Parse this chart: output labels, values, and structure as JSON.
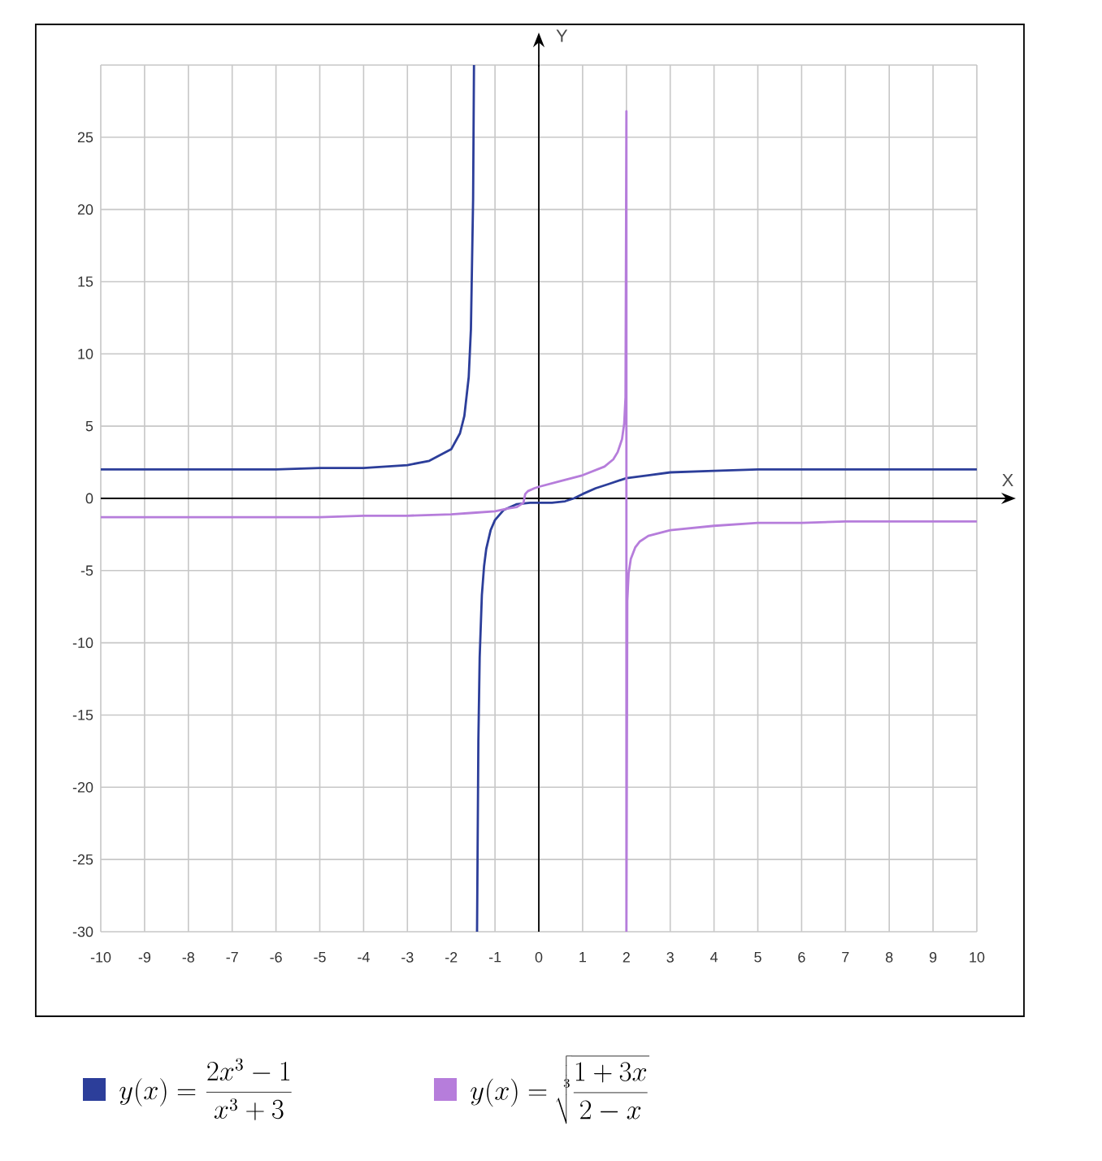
{
  "chart_data": {
    "type": "line",
    "xlabel": "X",
    "ylabel": "Y",
    "xlim": [
      -10,
      10
    ],
    "ylim": [
      -30,
      30
    ],
    "xticks": [
      -10,
      -9,
      -8,
      -7,
      -6,
      -5,
      -4,
      -3,
      -2,
      -1,
      0,
      1,
      2,
      3,
      4,
      5,
      6,
      7,
      8,
      9,
      10
    ],
    "yticks": [
      -30,
      -25,
      -20,
      -15,
      -10,
      -5,
      0,
      5,
      10,
      15,
      20,
      25,
      {
        "value": 30,
        "label": null
      }
    ],
    "grid": true,
    "legend": "bottom",
    "marker": "none",
    "line_style": "solid",
    "series": [
      {
        "name": "y(x)=\\frac{2x^3-1}{x^3+3}",
        "color": "#2c3e9a",
        "x": [
          -10,
          -8,
          -6,
          -5,
          -4,
          -3,
          -2.5,
          -2,
          -1.8,
          -1.7,
          -1.6,
          -1.55,
          -1.5,
          -1.48,
          -1.44,
          -1.41,
          -1.38,
          -1.35,
          -1.3,
          -1.25,
          -1.2,
          -1.1,
          -1,
          -0.8,
          -0.5,
          -0.2,
          0,
          0.3,
          0.6,
          0.8,
          1,
          1.3,
          1.6,
          2,
          2.5,
          3,
          4,
          5,
          7,
          10
        ],
        "values": [
          2,
          2,
          2,
          2.1,
          2.1,
          2.3,
          2.6,
          3.4,
          4.5,
          5.7,
          8.4,
          11.7,
          20.7,
          30,
          null,
          -30,
          -16.8,
          -11,
          -6.7,
          -4.7,
          -3.5,
          -2.2,
          -1.5,
          -0.8,
          -0.4,
          -0.3,
          -0.3,
          -0.3,
          -0.2,
          0,
          0.3,
          0.7,
          1,
          1.4,
          1.6,
          1.8,
          1.9,
          2,
          2,
          2
        ]
      },
      {
        "name": "y(x)=\\sqrt[3]{\\frac{1+3x}{2-x}}",
        "color": "#b67ddb",
        "x": [
          -10,
          -8,
          -6,
          -5,
          -4,
          -3,
          -2,
          -1.5,
          -1,
          -0.7,
          -0.5,
          -0.4,
          -0.35,
          -0.33,
          -0.31,
          -0.25,
          -0.1,
          0,
          0.5,
          1,
          1.5,
          1.7,
          1.8,
          1.9,
          1.95,
          1.98,
          2,
          2,
          2.02,
          2.05,
          2.1,
          2.2,
          2.3,
          2.5,
          3,
          4,
          5,
          6,
          7,
          8,
          10
        ],
        "values": [
          -1.3,
          -1.3,
          -1.3,
          -1.3,
          -1.2,
          -1.2,
          -1.1,
          -1,
          -0.9,
          -0.7,
          -0.6,
          -0.4,
          -0.3,
          0,
          0.3,
          0.5,
          0.7,
          0.8,
          1.2,
          1.6,
          2.2,
          2.7,
          3.2,
          4.1,
          5.2,
          7,
          26.8,
          -30,
          -7.1,
          -5.2,
          -4.2,
          -3.4,
          -3,
          -2.6,
          -2.2,
          -1.9,
          -1.7,
          -1.7,
          -1.6,
          -1.6,
          -1.6
        ]
      }
    ]
  }
}
